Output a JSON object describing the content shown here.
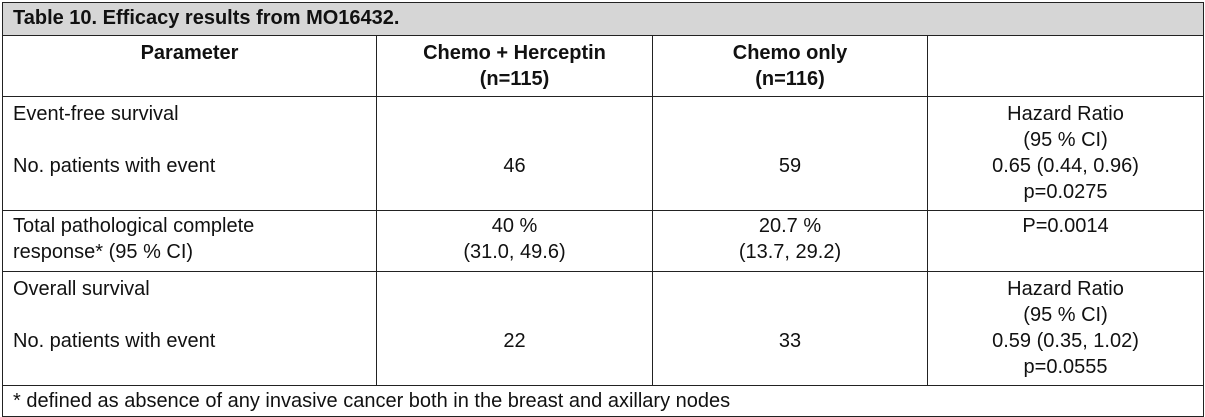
{
  "table": {
    "caption": "Table 10. Efficacy results from MO16432.",
    "headers": {
      "parameter": "Parameter",
      "col1_line1": "Chemo + Herceptin",
      "col1_line2": "(n=115)",
      "col2_line1": "Chemo only",
      "col2_line2": "(n=116)",
      "col3": ""
    },
    "rows": [
      {
        "param_line1": "Event-free survival",
        "param_line2": "No. patients with event",
        "col1": "46",
        "col2": "59",
        "stat_line1": "Hazard Ratio",
        "stat_line2": "(95 % CI)",
        "stat_line3": "0.65 (0.44, 0.96)",
        "stat_line4": "p=0.0275"
      },
      {
        "param_line1": "Total pathological complete",
        "param_line2": "response* (95 % CI)",
        "col1_line1": "40 %",
        "col1_line2": "(31.0, 49.6)",
        "col2_line1": "20.7 %",
        "col2_line2": "(13.7, 29.2)",
        "stat": "P=0.0014"
      },
      {
        "param_line1": "Overall survival",
        "param_line2": "No. patients with event",
        "col1": "22",
        "col2": "33",
        "stat_line1": "Hazard Ratio",
        "stat_line2": "(95 % CI)",
        "stat_line3": "0.59 (0.35, 1.02)",
        "stat_line4": "p=0.0555"
      }
    ],
    "footnote": "* defined as absence of any invasive cancer both in the breast and axillary nodes"
  }
}
